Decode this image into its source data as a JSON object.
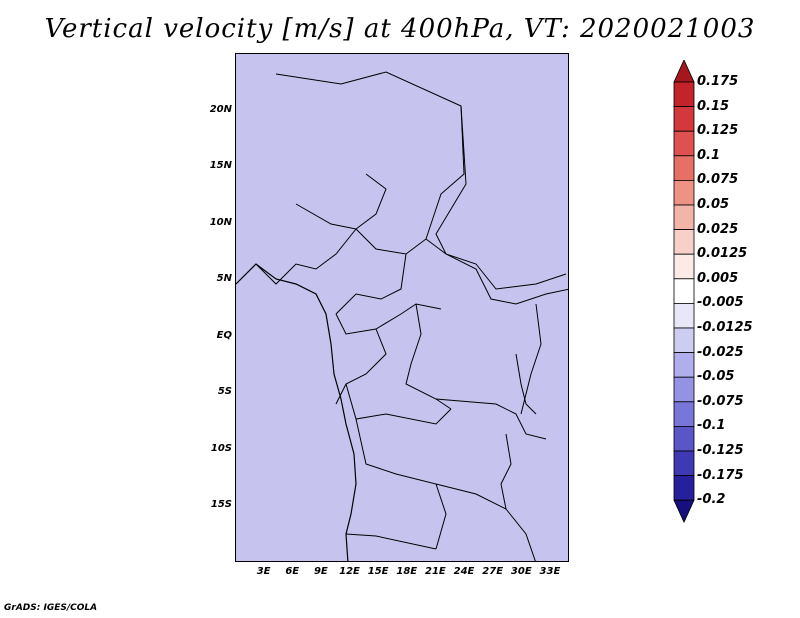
{
  "title": "Vertical velocity [m/s] at 400hPa, VT: 2020021003",
  "footer": "GrADS: IGES/COLA",
  "map": {
    "lon_range": [
      0,
      35
    ],
    "lat_range": [
      -20,
      25
    ],
    "lat_ticks": [
      "20N",
      "15N",
      "10N",
      "5N",
      "EQ",
      "5S",
      "10S",
      "15S"
    ],
    "lat_values": [
      20,
      15,
      10,
      5,
      0,
      -5,
      -10,
      -15
    ],
    "lon_ticks": [
      "3E",
      "6E",
      "9E",
      "12E",
      "15E",
      "18E",
      "21E",
      "24E",
      "27E",
      "30E",
      "33E"
    ],
    "lon_values": [
      3,
      6,
      9,
      12,
      15,
      18,
      21,
      24,
      27,
      30,
      33
    ]
  },
  "colorbar": {
    "labels": [
      "0.175",
      "0.15",
      "0.125",
      "0.1",
      "0.075",
      "0.05",
      "0.025",
      "0.0125",
      "0.005",
      "-0.005",
      "-0.0125",
      "-0.025",
      "-0.05",
      "-0.075",
      "-0.1",
      "-0.125",
      "-0.175",
      "-0.2"
    ],
    "colors": [
      "#a5171c",
      "#c2242a",
      "#d3383c",
      "#de5150",
      "#e67066",
      "#ee9286",
      "#f3b4aa",
      "#f7d1c9",
      "#fbeae6",
      "#ffffff",
      "#e8e7f7",
      "#cdcdf1",
      "#b0aeec",
      "#9492e4",
      "#7876d8",
      "#5a56c8",
      "#3f39b3",
      "#27209c",
      "#170f7e"
    ],
    "top_arrow_color": "#a5171c",
    "bottom_arrow_color": "#170f7e"
  }
}
